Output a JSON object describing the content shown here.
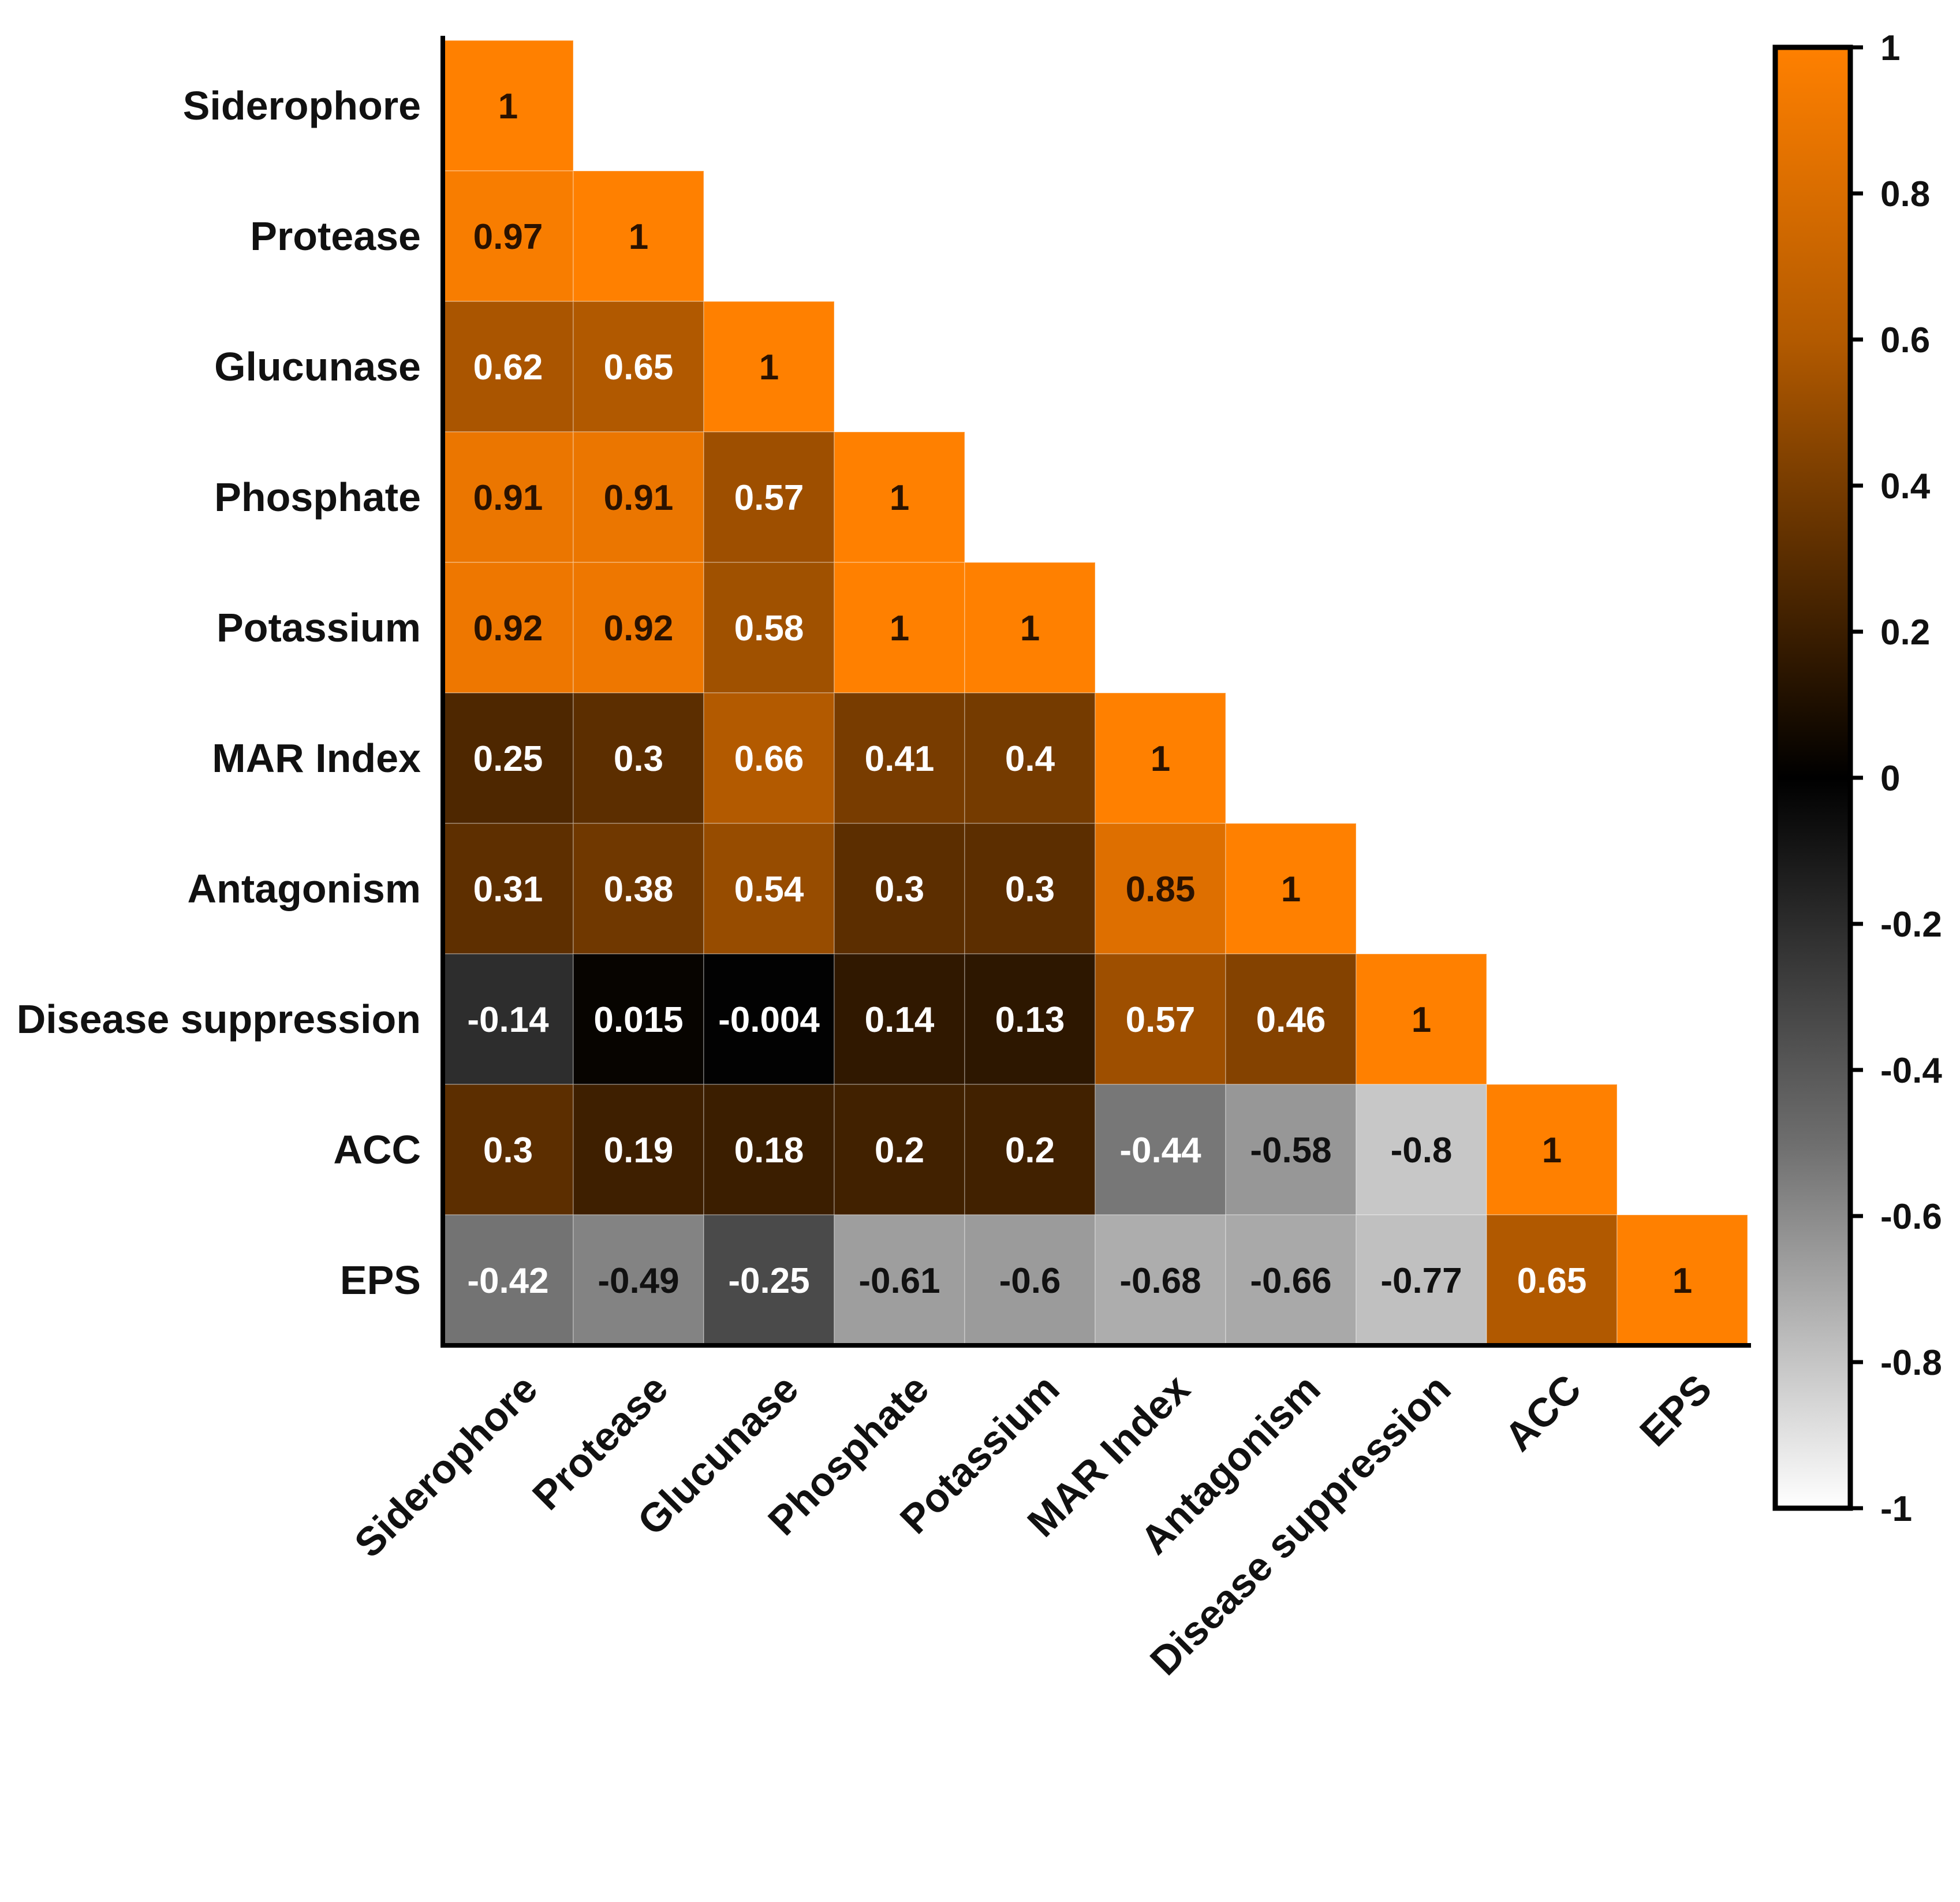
{
  "chart_data": {
    "type": "heatmap",
    "variant": "lower-triangle correlation matrix",
    "variables": [
      "Siderophore",
      "Protease",
      "Glucunase",
      "Phosphate",
      "Potassium",
      "MAR Index",
      "Antagonism",
      "Disease suppression",
      "ACC",
      "EPS"
    ],
    "values": [
      [
        1
      ],
      [
        0.97,
        1
      ],
      [
        0.62,
        0.65,
        1
      ],
      [
        0.91,
        0.91,
        0.57,
        1
      ],
      [
        0.92,
        0.92,
        0.58,
        1,
        1
      ],
      [
        0.25,
        0.3,
        0.66,
        0.41,
        0.4,
        1
      ],
      [
        0.31,
        0.38,
        0.54,
        0.3,
        0.3,
        0.85,
        1
      ],
      [
        -0.14,
        0.015,
        -0.004,
        0.14,
        0.13,
        0.57,
        0.46,
        1
      ],
      [
        0.3,
        0.19,
        0.18,
        0.2,
        0.2,
        -0.44,
        -0.58,
        -0.8,
        1
      ],
      [
        -0.42,
        -0.49,
        -0.25,
        -0.61,
        -0.6,
        -0.68,
        -0.66,
        -0.77,
        0.65,
        1
      ]
    ],
    "value_labels": [
      [
        "1"
      ],
      [
        "0.97",
        "1"
      ],
      [
        "0.62",
        "0.65",
        "1"
      ],
      [
        "0.91",
        "0.91",
        "0.57",
        "1"
      ],
      [
        "0.92",
        "0.92",
        "0.58",
        "1",
        "1"
      ],
      [
        "0.25",
        "0.3",
        "0.66",
        "0.41",
        "0.4",
        "1"
      ],
      [
        "0.31",
        "0.38",
        "0.54",
        "0.3",
        "0.3",
        "0.85",
        "1"
      ],
      [
        "-0.14",
        "0.015",
        "-0.004",
        "0.14",
        "0.13",
        "0.57",
        "0.46",
        "1"
      ],
      [
        "0.3",
        "0.19",
        "0.18",
        "0.2",
        "0.2",
        "-0.44",
        "-0.58",
        "-0.8",
        "1"
      ],
      [
        "-0.42",
        "-0.49",
        "-0.25",
        "-0.61",
        "-0.6",
        "-0.68",
        "-0.66",
        "-0.77",
        "0.65",
        "1"
      ]
    ],
    "colorbar": {
      "range": [
        -1,
        1
      ],
      "ticks": [
        1,
        0.8,
        0.6,
        0.4,
        0.2,
        0,
        -0.2,
        -0.4,
        -0.6,
        -0.8,
        -1
      ],
      "tick_labels": [
        "1",
        "0.8",
        "0.6",
        "0.4",
        "0.2",
        "0",
        "-0.2",
        "-0.4",
        "-0.6",
        "-0.8",
        "-1"
      ],
      "colors": {
        "max": "#ff8000",
        "zero": "#000000",
        "min": "#ffffff"
      },
      "placement": "right"
    },
    "title": "",
    "xlabel": "",
    "ylabel": ""
  }
}
